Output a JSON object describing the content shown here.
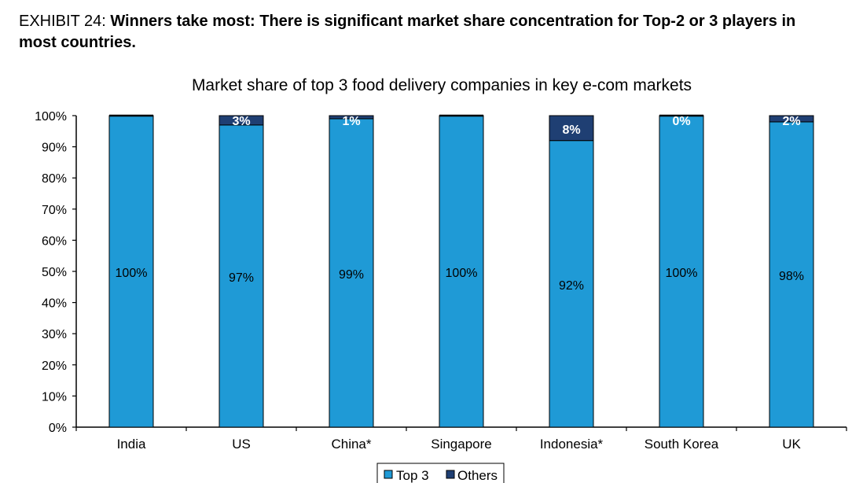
{
  "header": {
    "exhibit_label": "EXHIBIT 24:",
    "exhibit_title": "Winners take most: There is significant market share concentration for Top-2 or 3 players in most countries."
  },
  "chart_data": {
    "type": "bar",
    "stacked": true,
    "title": "Market share of top 3 food delivery companies in key e-com markets",
    "categories": [
      "India",
      "US",
      "China*",
      "Singapore",
      "Indonesia*",
      "South Korea",
      "UK"
    ],
    "series": [
      {
        "name": "Top 3",
        "color": "#1f9ad6",
        "values": [
          100,
          97,
          99,
          100,
          92,
          100,
          98
        ],
        "labels": [
          "100%",
          "97%",
          "99%",
          "100%",
          "92%",
          "100%",
          "98%"
        ]
      },
      {
        "name": "Others",
        "color": "#1f3f73",
        "values": [
          0,
          3,
          1,
          0,
          8,
          0,
          2
        ],
        "labels": [
          "",
          "3%",
          "1%",
          "",
          "8%",
          "0%",
          "2%"
        ]
      }
    ],
    "y_ticks": [
      "0%",
      "10%",
      "20%",
      "30%",
      "40%",
      "50%",
      "60%",
      "70%",
      "80%",
      "90%",
      "100%"
    ],
    "ylim": [
      0,
      100
    ],
    "xlabel": "",
    "ylabel": "",
    "grid": false,
    "legend_position": "bottom"
  }
}
